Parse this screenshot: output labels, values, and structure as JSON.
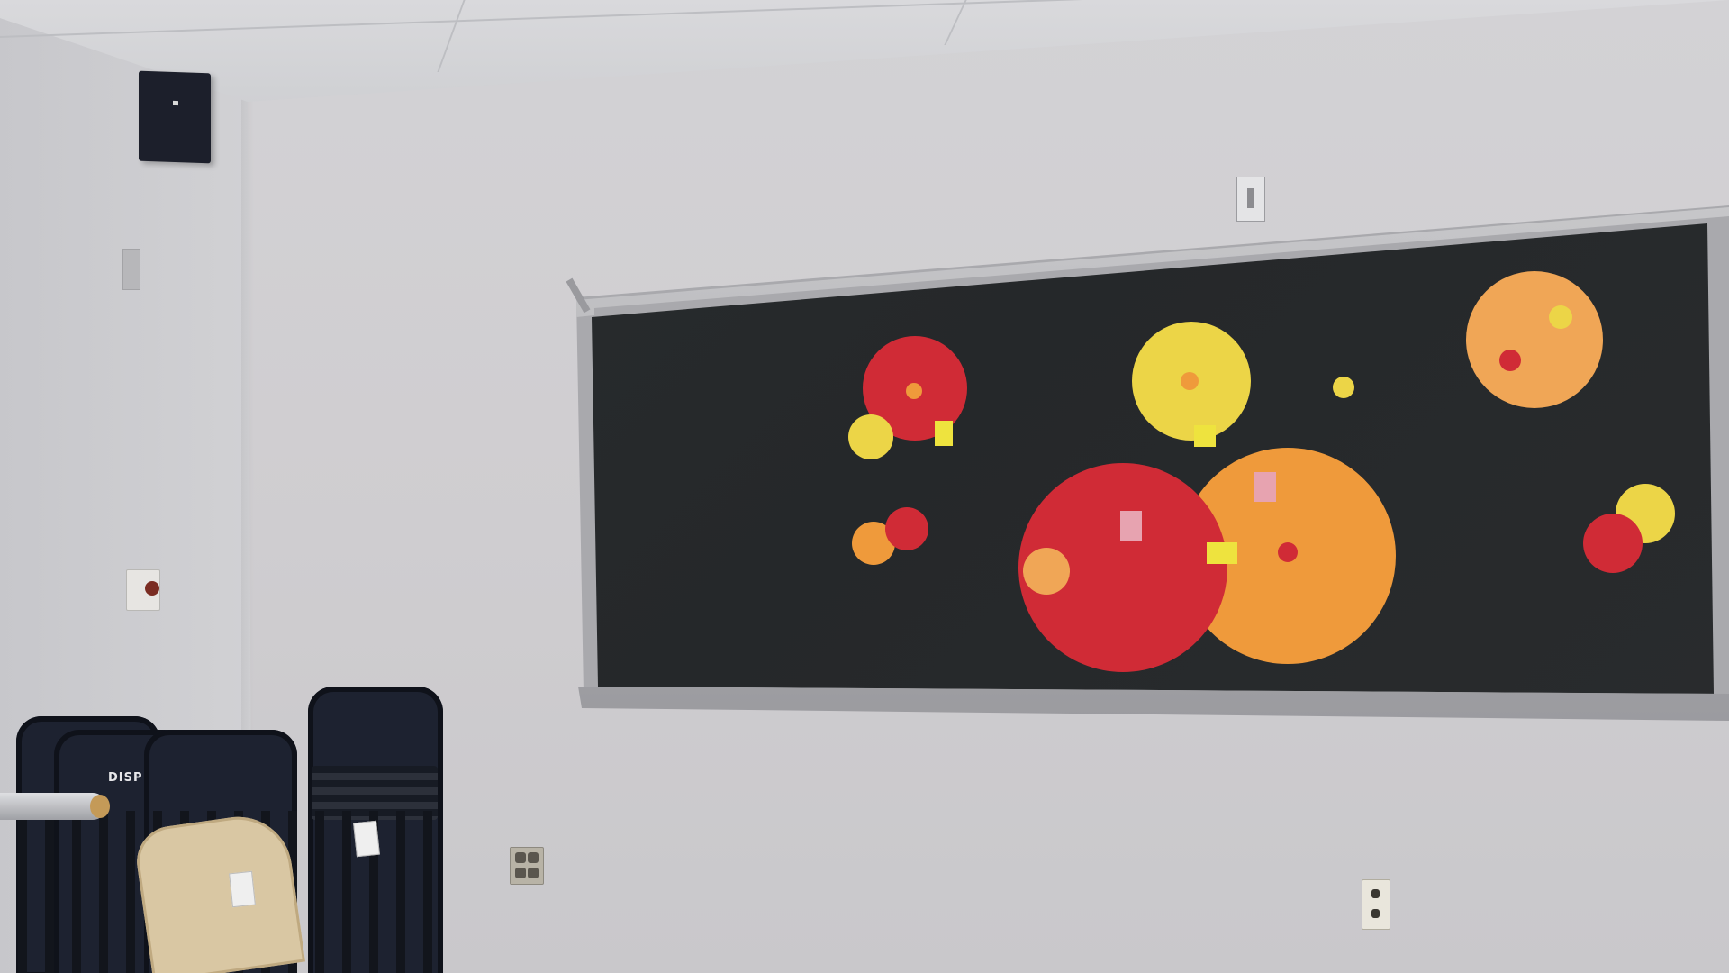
{
  "scene": {
    "subject": "classroom-wall-with-chalkboard",
    "chair_label": "DISP"
  },
  "colors": {
    "red": "#d02b36",
    "orange": "#ef9a3b",
    "yellow": "#ecd547",
    "peach": "#f0a656",
    "note_yellow": "#eee33e",
    "note_pink": "#e7a3b0"
  }
}
